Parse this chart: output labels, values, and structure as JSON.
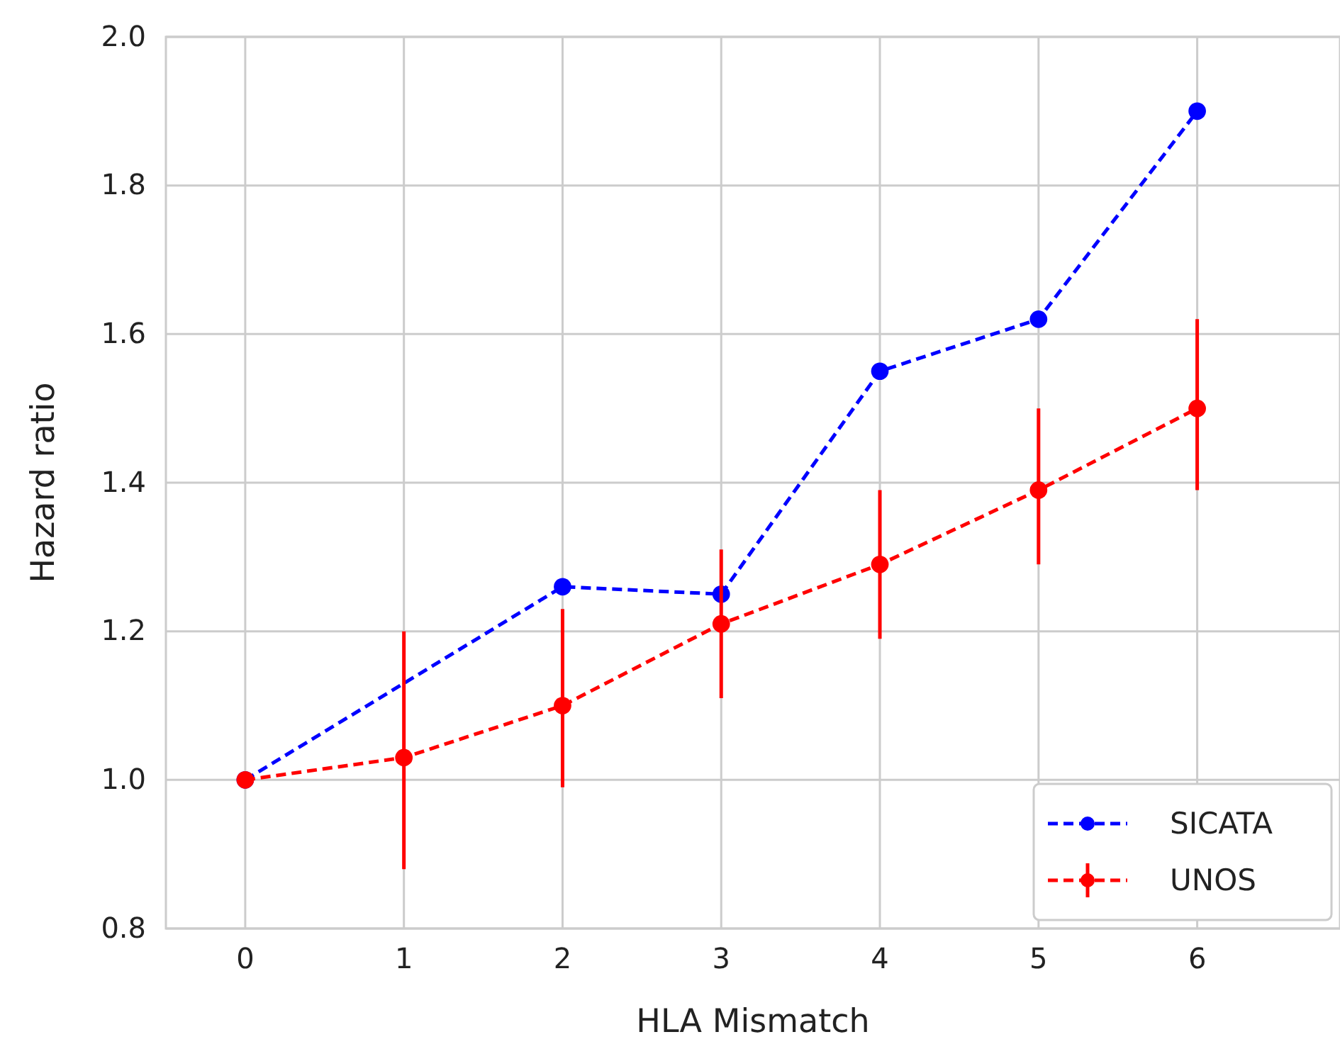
{
  "chart_data": {
    "type": "line",
    "xlabel": "HLA Mismatch",
    "ylabel": "Hazard ratio",
    "x": [
      0,
      1,
      2,
      3,
      4,
      5,
      6
    ],
    "series": [
      {
        "name": "SICATA",
        "color": "#0000ff",
        "values": [
          1.0,
          null,
          1.26,
          1.25,
          1.55,
          1.62,
          1.9
        ]
      },
      {
        "name": "UNOS",
        "color": "#ff0000",
        "values": [
          1.0,
          1.03,
          1.1,
          1.21,
          1.29,
          1.39,
          1.5
        ],
        "errors": [
          null,
          [
            0.88,
            1.2
          ],
          [
            0.99,
            1.23
          ],
          [
            1.11,
            1.31
          ],
          [
            1.19,
            1.39
          ],
          [
            1.29,
            1.5
          ],
          [
            1.39,
            1.62
          ]
        ]
      }
    ],
    "xlim": [
      -0.5,
      6.9
    ],
    "xticks": [
      0,
      1,
      2,
      3,
      4,
      5,
      6
    ],
    "ylim": [
      0.8,
      2.0
    ],
    "yticks": [
      {
        "value": 0.8,
        "label": "0.8"
      },
      {
        "value": 1.0,
        "label": "1.0"
      },
      {
        "value": 1.2,
        "label": "1.2"
      },
      {
        "value": 1.4,
        "label": "1.4"
      },
      {
        "value": 1.6,
        "label": "1.6"
      },
      {
        "value": 1.8,
        "label": "1.8"
      },
      {
        "value": 2.0,
        "label": "2.0"
      }
    ],
    "grid": true,
    "legend": "bottom right",
    "marker": "circle",
    "line_style": "dashed"
  }
}
